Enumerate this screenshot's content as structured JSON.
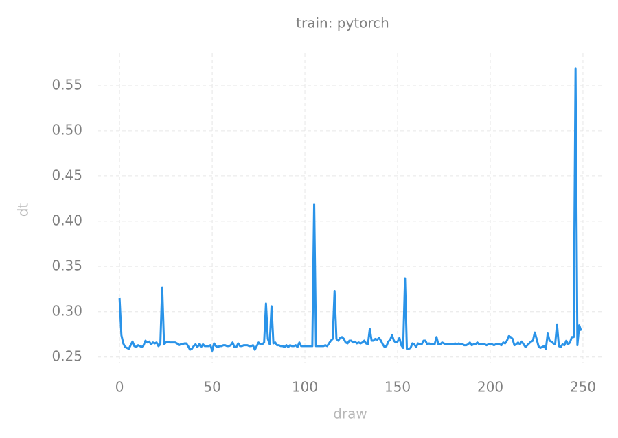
{
  "chart_data": {
    "type": "line",
    "title": "train: pytorch",
    "xlabel": "draw",
    "ylabel": "dt",
    "xlim": [
      -11.9,
      261.5
    ],
    "ylim": [
      0.243,
      0.5856
    ],
    "xticks": [
      0,
      50,
      100,
      150,
      200,
      250
    ],
    "yticks": [
      0.25,
      {
        "value": 0.3,
        "label": "0.30"
      },
      0.35,
      {
        "value": 0.4,
        "label": "0.40"
      },
      0.45,
      {
        "value": 0.5,
        "label": "0.50"
      },
      0.55
    ],
    "grid": true,
    "x": [
      0,
      1,
      2,
      3,
      4,
      5,
      6,
      7,
      8,
      9,
      10,
      11,
      12,
      13,
      14,
      15,
      16,
      17,
      18,
      19,
      20,
      21,
      22,
      23,
      24,
      25,
      26,
      27,
      28,
      29,
      30,
      31,
      32,
      33,
      34,
      35,
      36,
      37,
      38,
      39,
      40,
      41,
      42,
      43,
      44,
      45,
      46,
      47,
      48,
      49,
      50,
      51,
      52,
      53,
      54,
      55,
      56,
      57,
      58,
      59,
      60,
      61,
      62,
      63,
      64,
      65,
      66,
      67,
      68,
      69,
      70,
      71,
      72,
      73,
      74,
      75,
      76,
      77,
      78,
      79,
      80,
      81,
      82,
      83,
      84,
      85,
      86,
      87,
      88,
      89,
      90,
      91,
      92,
      93,
      94,
      95,
      96,
      97,
      98,
      99,
      100,
      101,
      102,
      103,
      104,
      105,
      106,
      107,
      108,
      109,
      110,
      111,
      112,
      113,
      114,
      115,
      116,
      117,
      118,
      119,
      120,
      121,
      122,
      123,
      124,
      125,
      126,
      127,
      128,
      129,
      130,
      131,
      132,
      133,
      134,
      135,
      136,
      137,
      138,
      139,
      140,
      141,
      142,
      143,
      144,
      145,
      146,
      147,
      148,
      149,
      150,
      151,
      152,
      153,
      154,
      155,
      156,
      157,
      158,
      159,
      160,
      161,
      162,
      163,
      164,
      165,
      166,
      167,
      168,
      169,
      170,
      171,
      172,
      173,
      174,
      175,
      176,
      177,
      178,
      179,
      180,
      181,
      182,
      183,
      184,
      185,
      186,
      187,
      188,
      189,
      190,
      191,
      192,
      193,
      194,
      195,
      196,
      197,
      198,
      199,
      200,
      201,
      202,
      203,
      204,
      205,
      206,
      207,
      208,
      209,
      210,
      211,
      212,
      213,
      214,
      215,
      216,
      217,
      218,
      219,
      220,
      221,
      222,
      223,
      224,
      225,
      226,
      227,
      228,
      229,
      230,
      231,
      232,
      233,
      234,
      235,
      236,
      237,
      238,
      239,
      240,
      241,
      242,
      243,
      244,
      245,
      246,
      247,
      248,
      249
    ],
    "series": [
      {
        "color": "#2a93e8",
        "values": [
          0.315,
          0.274,
          0.265,
          0.261,
          0.26,
          0.259,
          0.263,
          0.267,
          0.262,
          0.261,
          0.263,
          0.262,
          0.261,
          0.263,
          0.268,
          0.266,
          0.267,
          0.264,
          0.266,
          0.265,
          0.266,
          0.262,
          0.264,
          0.327,
          0.264,
          0.266,
          0.267,
          0.266,
          0.266,
          0.266,
          0.266,
          0.265,
          0.263,
          0.264,
          0.264,
          0.265,
          0.265,
          0.262,
          0.258,
          0.259,
          0.262,
          0.264,
          0.261,
          0.264,
          0.261,
          0.264,
          0.262,
          0.262,
          0.262,
          0.263,
          0.257,
          0.265,
          0.262,
          0.261,
          0.262,
          0.262,
          0.263,
          0.263,
          0.262,
          0.262,
          0.263,
          0.266,
          0.261,
          0.261,
          0.265,
          0.262,
          0.262,
          0.263,
          0.263,
          0.263,
          0.262,
          0.262,
          0.263,
          0.258,
          0.262,
          0.266,
          0.264,
          0.264,
          0.266,
          0.309,
          0.27,
          0.264,
          0.306,
          0.265,
          0.266,
          0.263,
          0.263,
          0.262,
          0.262,
          0.261,
          0.263,
          0.261,
          0.263,
          0.262,
          0.262,
          0.263,
          0.261,
          0.266,
          0.262,
          0.262,
          0.262,
          0.262,
          0.262,
          0.262,
          0.262,
          0.419,
          0.262,
          0.262,
          0.262,
          0.262,
          0.262,
          0.263,
          0.262,
          0.265,
          0.268,
          0.27,
          0.323,
          0.27,
          0.268,
          0.271,
          0.272,
          0.27,
          0.266,
          0.265,
          0.268,
          0.268,
          0.266,
          0.267,
          0.265,
          0.266,
          0.265,
          0.266,
          0.268,
          0.265,
          0.264,
          0.281,
          0.268,
          0.268,
          0.27,
          0.269,
          0.271,
          0.268,
          0.264,
          0.261,
          0.262,
          0.267,
          0.269,
          0.274,
          0.268,
          0.266,
          0.267,
          0.271,
          0.263,
          0.26,
          0.337,
          0.259,
          0.259,
          0.26,
          0.265,
          0.264,
          0.261,
          0.265,
          0.264,
          0.264,
          0.268,
          0.268,
          0.264,
          0.265,
          0.264,
          0.264,
          0.264,
          0.272,
          0.264,
          0.264,
          0.266,
          0.265,
          0.264,
          0.264,
          0.264,
          0.264,
          0.264,
          0.265,
          0.264,
          0.265,
          0.264,
          0.264,
          0.263,
          0.263,
          0.264,
          0.266,
          0.263,
          0.264,
          0.264,
          0.266,
          0.264,
          0.264,
          0.264,
          0.264,
          0.263,
          0.264,
          0.264,
          0.264,
          0.263,
          0.264,
          0.264,
          0.264,
          0.263,
          0.266,
          0.265,
          0.268,
          0.273,
          0.272,
          0.27,
          0.263,
          0.264,
          0.266,
          0.264,
          0.267,
          0.264,
          0.261,
          0.263,
          0.265,
          0.267,
          0.268,
          0.277,
          0.27,
          0.262,
          0.26,
          0.261,
          0.262,
          0.259,
          0.276,
          0.268,
          0.267,
          0.265,
          0.264,
          0.286,
          0.262,
          0.261,
          0.264,
          0.263,
          0.268,
          0.264,
          0.266,
          0.272,
          0.272,
          0.569,
          0.263,
          0.285,
          0.279
        ]
      }
    ]
  }
}
